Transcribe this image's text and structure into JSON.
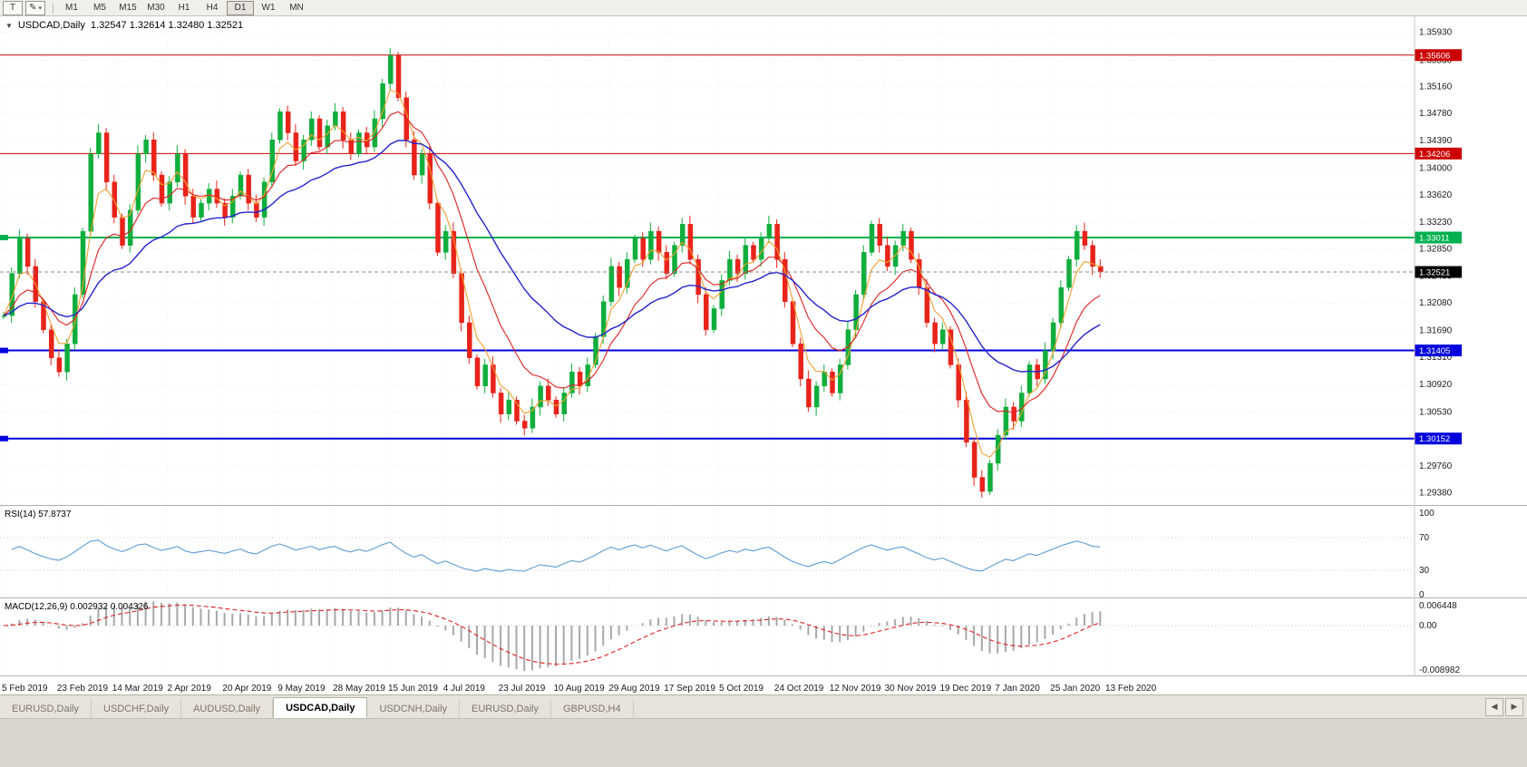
{
  "toolbar": {
    "tools": [
      {
        "glyph": "T",
        "name": "text-tool-button"
      },
      {
        "glyph": "✎",
        "caret": "▾",
        "name": "draw-tool-button"
      }
    ],
    "timeframes": [
      {
        "label": "M1"
      },
      {
        "label": "M5"
      },
      {
        "label": "M15"
      },
      {
        "label": "M30"
      },
      {
        "label": "H1"
      },
      {
        "label": "H4"
      },
      {
        "label": "D1",
        "active": true
      },
      {
        "label": "W1"
      },
      {
        "label": "MN"
      }
    ]
  },
  "chart": {
    "collapse_glyph": "▼",
    "title_symbol": "USDCAD,Daily",
    "title_ohlc": "1.32547 1.32614 1.32480 1.32521",
    "price_axis_labels": [
      "1.35930",
      "1.35530",
      "1.35160",
      "1.34780",
      "1.34390",
      "1.34000",
      "1.33620",
      "1.33230",
      "1.32850",
      "1.32460",
      "1.32080",
      "1.31690",
      "1.31310",
      "1.30920",
      "1.30530",
      "1.30140",
      "1.29760",
      "1.29380"
    ],
    "levels": [
      {
        "value": 1.35606,
        "label": "1.35606",
        "color": "#cc0000",
        "width": 1
      },
      {
        "value": 1.34206,
        "label": "1.34206",
        "color": "#cc0000",
        "width": 1
      },
      {
        "value": 1.33011,
        "label": "1.33011",
        "color": "#00b050",
        "width": 2
      },
      {
        "value": 1.31405,
        "label": "1.31405",
        "color": "#0000dd",
        "width": 2
      },
      {
        "value": 1.30152,
        "label": "1.30152",
        "color": "#0000dd",
        "width": 2
      }
    ],
    "current_price": {
      "value": 1.32521,
      "label": "1.32521",
      "color": "#000000"
    },
    "date_labels": [
      "5 Feb 2019",
      "23 Feb 2019",
      "14 Mar 2019",
      "2 Apr 2019",
      "20 Apr 2019",
      "9 May 2019",
      "28 May 2019",
      "15 Jun 2019",
      "4 Jul 2019",
      "23 Jul 2019",
      "10 Aug 2019",
      "29 Aug 2019",
      "17 Sep 2019",
      "5 Oct 2019",
      "24 Oct 2019",
      "12 Nov 2019",
      "30 Nov 2019",
      "19 Dec 2019",
      "7 Jan 2020",
      "25 Jan 2020",
      "13 Feb 2020"
    ]
  },
  "rsi": {
    "label": "RSI(14) 57.8737",
    "value": 57.8737,
    "period": 14,
    "axis": [
      "100",
      "70",
      "30",
      "0"
    ],
    "guide_levels": [
      70,
      30
    ],
    "line_color": "#5e9cd3"
  },
  "macd": {
    "label": "MACD(12,26,9) 0.002932 0.004326",
    "values": [
      0.002932,
      0.004326
    ],
    "params": [
      12,
      26,
      9
    ],
    "axis_top": "0.006448",
    "axis_zero": "0.00",
    "axis_bottom": "-0.008982",
    "bar_color": "#a8a8a8",
    "signal_color": "#e02020"
  },
  "tabs": {
    "items": [
      {
        "label": "EURUSD,Daily"
      },
      {
        "label": "USDCHF,Daily"
      },
      {
        "label": "AUDUSD,Daily"
      },
      {
        "label": "USDCAD,Daily",
        "active": true
      },
      {
        "label": "USDCNH,Daily"
      },
      {
        "label": "EURUSD,Daily"
      },
      {
        "label": "GBPUSD,H4"
      }
    ],
    "scroll_left": "◀",
    "scroll_right": "▶"
  },
  "chart_data": {
    "type": "candlestick+indicators",
    "symbol": "USDCAD",
    "timeframe": "Daily",
    "price_range": [
      1.2922,
      1.3608
    ],
    "x_range_dates": [
      "5 Feb 2019",
      "13 Feb 2020"
    ],
    "closes": [
      1.319,
      1.325,
      1.33,
      1.326,
      1.321,
      1.317,
      1.313,
      1.311,
      1.315,
      1.322,
      1.331,
      1.342,
      1.345,
      1.338,
      1.333,
      1.329,
      1.334,
      1.342,
      1.344,
      1.339,
      1.335,
      1.338,
      1.342,
      1.336,
      1.333,
      1.335,
      1.337,
      1.335,
      1.333,
      1.336,
      1.339,
      1.335,
      1.333,
      1.338,
      1.344,
      1.348,
      1.345,
      1.341,
      1.344,
      1.347,
      1.343,
      1.346,
      1.348,
      1.344,
      1.342,
      1.345,
      1.343,
      1.347,
      1.352,
      1.356,
      1.35,
      1.344,
      1.339,
      1.342,
      1.335,
      1.328,
      1.331,
      1.325,
      1.318,
      1.313,
      1.309,
      1.312,
      1.308,
      1.305,
      1.307,
      1.304,
      1.303,
      1.306,
      1.309,
      1.307,
      1.305,
      1.308,
      1.311,
      1.309,
      1.312,
      1.316,
      1.321,
      1.326,
      1.323,
      1.327,
      1.33,
      1.327,
      1.331,
      1.328,
      1.325,
      1.329,
      1.332,
      1.327,
      1.322,
      1.317,
      1.32,
      1.324,
      1.327,
      1.325,
      1.329,
      1.327,
      1.33,
      1.332,
      1.327,
      1.321,
      1.315,
      1.31,
      1.306,
      1.309,
      1.311,
      1.308,
      1.312,
      1.317,
      1.322,
      1.328,
      1.332,
      1.329,
      1.326,
      1.329,
      1.331,
      1.327,
      1.323,
      1.318,
      1.315,
      1.317,
      1.312,
      1.307,
      1.301,
      1.296,
      1.294,
      1.298,
      1.302,
      1.306,
      1.304,
      1.308,
      1.312,
      1.31,
      1.314,
      1.318,
      1.323,
      1.327,
      1.331,
      1.329,
      1.326,
      1.32521
    ],
    "candle_colors": {
      "up": "#0fae3c",
      "down": "#e8231a"
    },
    "ma_periods": [
      4,
      10,
      24
    ],
    "ma_colors": [
      "#f0a030",
      "#e02020",
      "#2323cc"
    ],
    "wick_base": 0.0005,
    "wick_step": 0.00018
  }
}
